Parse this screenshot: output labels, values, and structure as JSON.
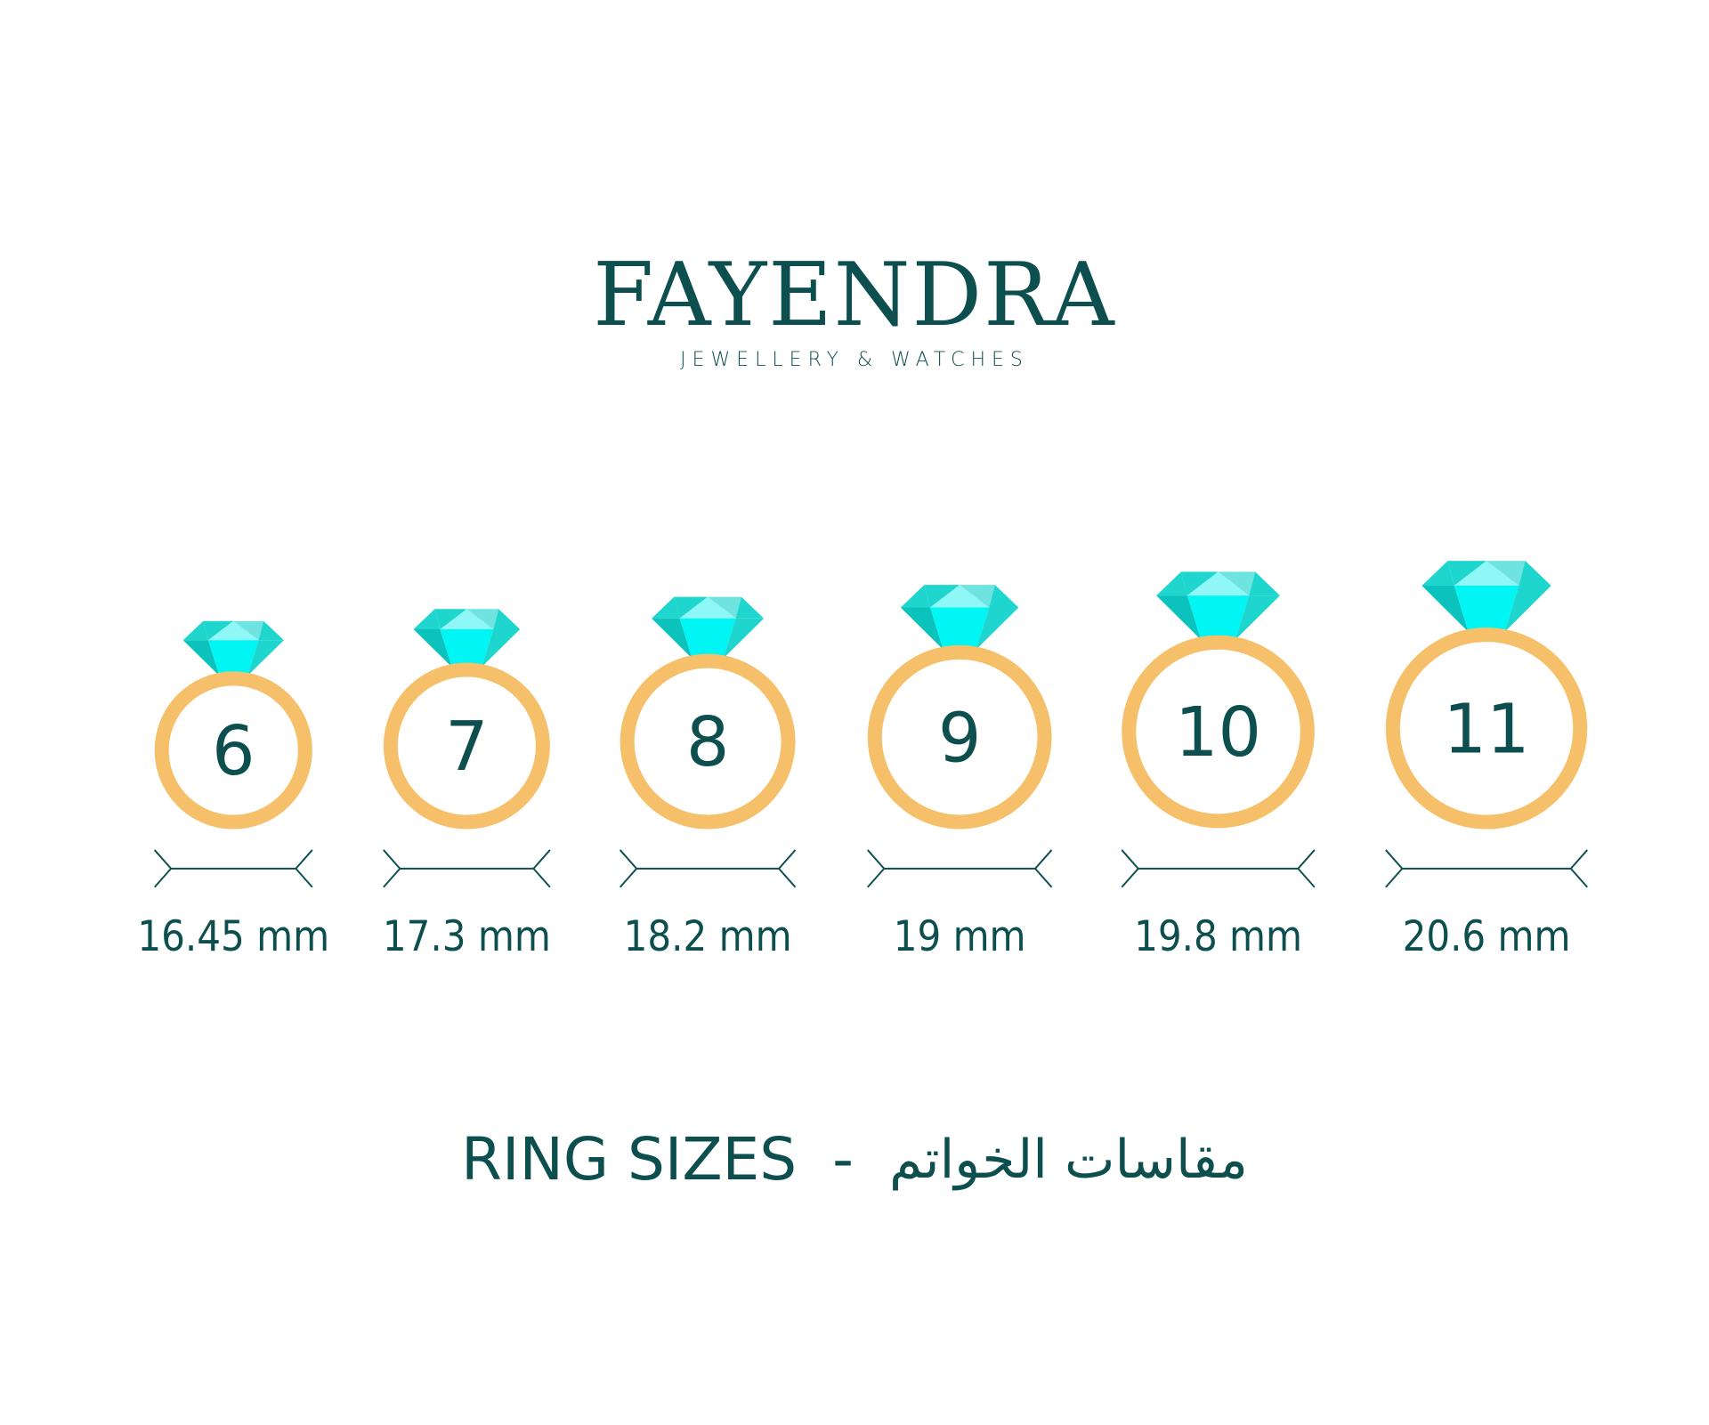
{
  "brand": {
    "name": "FAYENDRA",
    "tagline": "JEWELLERY & WATCHES"
  },
  "title": {
    "english": "RING SIZES",
    "separator": "-",
    "arabic": "مقاسات الخواتم"
  },
  "colors": {
    "text": "#0d4f4f",
    "ring": "#f6c06a",
    "gem_light": "#6ee3e0",
    "gem_mid": "#1fd6cf",
    "gem_dark": "#0bc2bd",
    "gem_bright": "#00f5f5",
    "gem_highlight": "#8ff7f5"
  },
  "rings": [
    {
      "size": "6",
      "diameter": "16.45 mm"
    },
    {
      "size": "7",
      "diameter": "17.3 mm"
    },
    {
      "size": "8",
      "diameter": "18.2 mm"
    },
    {
      "size": "9",
      "diameter": "19 mm"
    },
    {
      "size": "10",
      "diameter": "19.8 mm"
    },
    {
      "size": "11",
      "diameter": "20.6 mm"
    }
  ]
}
